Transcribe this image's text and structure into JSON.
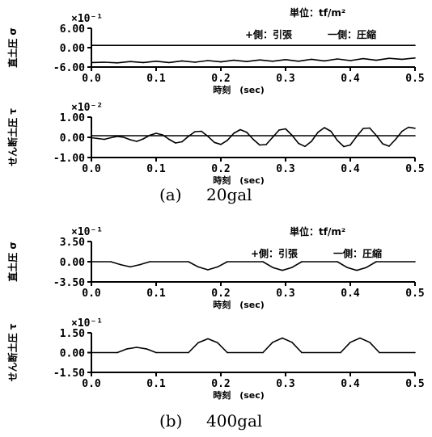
{
  "cases": [
    {
      "caption_label": "(a)",
      "caption_value": "20gal",
      "unit_label": "単位：tf/m²",
      "sign_plus": "+側：引張",
      "sign_minus": "一側：圧縮",
      "charts": [
        {
          "type": "line",
          "ylabel": "直土圧 σ",
          "multiplier": "×10⁻¹",
          "ylim": [
            -6.0,
            6.0
          ],
          "yticks": [
            "6.00",
            "0.00",
            "-6.00"
          ],
          "xlabel": "時刻　(sec)",
          "xlim": [
            0.0,
            0.5
          ],
          "xticks": [
            "0.0",
            "0.1",
            "0.2",
            "0.3",
            "0.4",
            "0.5"
          ],
          "series": [
            {
              "x": [
                0.0,
                0.5
              ],
              "y": [
                0.7,
                0.7
              ]
            },
            {
              "x": [
                0.0,
                0.02,
                0.04,
                0.06,
                0.08,
                0.1,
                0.12,
                0.14,
                0.16,
                0.18,
                0.2,
                0.22,
                0.24,
                0.26,
                0.28,
                0.3,
                0.32,
                0.34,
                0.36,
                0.38,
                0.4,
                0.42,
                0.44,
                0.46,
                0.48,
                0.5
              ],
              "y": [
                -4.6,
                -4.5,
                -4.7,
                -4.3,
                -4.6,
                -4.2,
                -4.6,
                -4.1,
                -4.5,
                -4.0,
                -4.4,
                -3.9,
                -4.3,
                -3.8,
                -4.2,
                -3.7,
                -4.2,
                -3.6,
                -4.1,
                -3.5,
                -4.0,
                -3.4,
                -3.9,
                -3.3,
                -3.6,
                -3.2
              ]
            }
          ]
        },
        {
          "type": "line",
          "ylabel": "せん断土圧 τ",
          "multiplier": "×10⁻²",
          "ylim": [
            -1.0,
            1.0
          ],
          "yticks": [
            "1.00",
            "0.00",
            "-1.00"
          ],
          "xlabel": "時刻　(sec)",
          "xlim": [
            0.0,
            0.5
          ],
          "xticks": [
            "0.0",
            "0.1",
            "0.2",
            "0.3",
            "0.4",
            "0.5"
          ],
          "series": [
            {
              "x": [
                0.0,
                0.5
              ],
              "y": [
                0.08,
                0.08
              ]
            },
            {
              "x": [
                0.0,
                0.01,
                0.02,
                0.03,
                0.04,
                0.05,
                0.06,
                0.07,
                0.08,
                0.09,
                0.1,
                0.11,
                0.12,
                0.13,
                0.14,
                0.15,
                0.16,
                0.17,
                0.18,
                0.19,
                0.2,
                0.21,
                0.22,
                0.23,
                0.24,
                0.25,
                0.26,
                0.27,
                0.28,
                0.29,
                0.3,
                0.31,
                0.32,
                0.33,
                0.34,
                0.35,
                0.36,
                0.37,
                0.38,
                0.39,
                0.4,
                0.41,
                0.42,
                0.43,
                0.44,
                0.45,
                0.46,
                0.47,
                0.48,
                0.49,
                0.5
              ],
              "y": [
                -0.02,
                -0.06,
                -0.1,
                -0.02,
                0.05,
                0.0,
                -0.12,
                -0.2,
                -0.08,
                0.1,
                0.2,
                0.12,
                -0.1,
                -0.28,
                -0.22,
                0.05,
                0.28,
                0.3,
                0.05,
                -0.25,
                -0.35,
                -0.15,
                0.2,
                0.38,
                0.25,
                -0.1,
                -0.38,
                -0.36,
                0.0,
                0.36,
                0.42,
                0.1,
                -0.3,
                -0.45,
                -0.2,
                0.25,
                0.48,
                0.3,
                -0.15,
                -0.46,
                -0.38,
                0.05,
                0.44,
                0.46,
                0.1,
                -0.32,
                -0.44,
                -0.1,
                0.3,
                0.5,
                0.45
              ]
            }
          ]
        }
      ]
    },
    {
      "caption_label": "(b)",
      "caption_value": "400gal",
      "unit_label": "単位：tf/m²",
      "sign_plus": "+側：引張",
      "sign_minus": "一側：圧縮",
      "charts": [
        {
          "type": "line",
          "ylabel": "直土圧 σ",
          "multiplier": "×10⁻¹",
          "ylim": [
            -3.5,
            3.5
          ],
          "yticks": [
            "3.50",
            "0.00",
            "-3.50"
          ],
          "xlabel": "時刻　(sec)",
          "xlim": [
            0.0,
            0.5
          ],
          "xticks": [
            "0.0",
            "0.1",
            "0.2",
            "0.3",
            "0.4",
            "0.5"
          ],
          "series": [
            {
              "x": [
                0.0,
                0.03,
                0.045,
                0.06,
                0.075,
                0.09,
                0.15,
                0.165,
                0.18,
                0.195,
                0.21,
                0.265,
                0.28,
                0.295,
                0.31,
                0.325,
                0.38,
                0.395,
                0.41,
                0.425,
                0.44,
                0.5
              ],
              "y": [
                0.0,
                0.0,
                -0.5,
                -0.9,
                -0.5,
                0.0,
                0.0,
                -0.9,
                -1.4,
                -0.9,
                0.0,
                0.0,
                -1.0,
                -1.5,
                -1.0,
                0.0,
                0.0,
                -1.0,
                -1.5,
                -1.0,
                0.0,
                0.0
              ]
            }
          ]
        },
        {
          "type": "line",
          "ylabel": "せん断土圧 τ",
          "multiplier": "×10⁻¹",
          "ylim": [
            -1.5,
            1.5
          ],
          "yticks": [
            "1.50",
            "0.00",
            "-1.50"
          ],
          "xlabel": "時刻　(sec)",
          "xlim": [
            0.0,
            0.5
          ],
          "xticks": [
            "0.0",
            "0.1",
            "0.2",
            "0.3",
            "0.4",
            "0.5"
          ],
          "series": [
            {
              "x": [
                0.0,
                0.04,
                0.055,
                0.07,
                0.085,
                0.1,
                0.15,
                0.165,
                0.18,
                0.195,
                0.21,
                0.265,
                0.28,
                0.295,
                0.31,
                0.325,
                0.385,
                0.4,
                0.415,
                0.43,
                0.445,
                0.5
              ],
              "y": [
                0.0,
                0.0,
                0.28,
                0.4,
                0.28,
                0.0,
                0.0,
                0.75,
                1.05,
                0.75,
                0.0,
                0.0,
                0.78,
                1.1,
                0.78,
                0.0,
                0.0,
                0.78,
                1.1,
                0.78,
                0.0,
                0.0
              ]
            }
          ]
        }
      ]
    }
  ]
}
